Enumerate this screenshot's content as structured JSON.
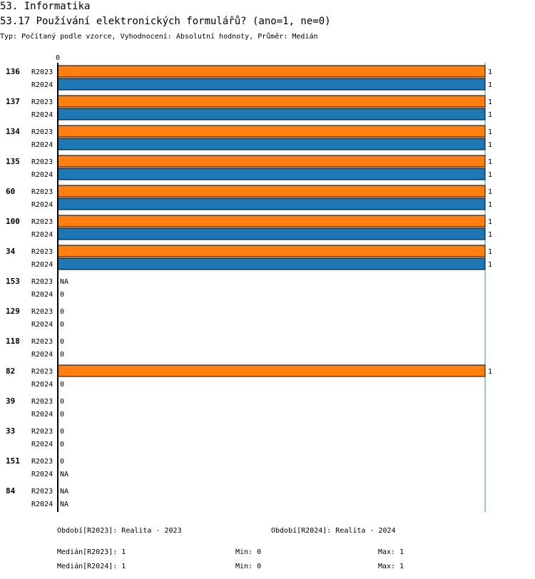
{
  "chart_data": {
    "type": "hbar",
    "title": "53. Informatika",
    "subtitle": "53.17 Používání elektronických formulářů? (ano=1, ne=0)",
    "info": "Typ: Počítaný podle vzorce, Vyhodnocení: Absolutní hodnoty, Průměr: Medián",
    "categories": [
      "136",
      "137",
      "134",
      "135",
      "60",
      "100",
      "34",
      "153",
      "129",
      "118",
      "82",
      "39",
      "33",
      "151",
      "84"
    ],
    "series": [
      {
        "name": "R2023",
        "color": "#ff8010",
        "values": [
          1,
          1,
          1,
          1,
          1,
          1,
          1,
          null,
          0,
          0,
          1,
          0,
          0,
          0,
          null
        ],
        "value_labels": [
          "1",
          "1",
          "1",
          "1",
          "1",
          "1",
          "1",
          "NA",
          "0",
          "0",
          "1",
          "0",
          "0",
          "0",
          "NA"
        ]
      },
      {
        "name": "R2024",
        "color": "#1f77b4",
        "values": [
          1,
          1,
          1,
          1,
          1,
          1,
          1,
          0,
          0,
          0,
          0,
          0,
          0,
          null,
          null
        ],
        "value_labels": [
          "1",
          "1",
          "1",
          "1",
          "1",
          "1",
          "1",
          "0",
          "0",
          "0",
          "0",
          "0",
          "0",
          "NA",
          "NA"
        ]
      }
    ],
    "xlim": [
      0,
      1
    ],
    "xticks": [
      0
    ]
  },
  "footer": {
    "periods": [
      "Období[R2023]: Realita - 2023",
      "Období[R2024]: Realita - 2024"
    ],
    "stats": [
      {
        "median": "Medián[R2023]: 1",
        "min": "Min: 0",
        "max": "Max: 1"
      },
      {
        "median": "Medián[R2024]: 1",
        "min": "Min: 0",
        "max": "Max: 1"
      }
    ]
  }
}
